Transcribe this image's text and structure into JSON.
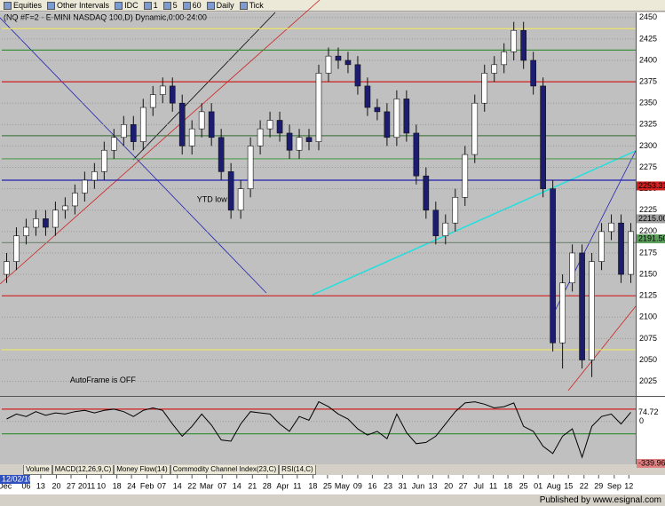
{
  "toolbar": {
    "items": [
      "Equities",
      "Other Intervals",
      "IDC",
      "1",
      "5",
      "60",
      "Daily",
      "Tick"
    ]
  },
  "chart_data": [
    {
      "type": "candlestick",
      "title": "(NQ #F=2 - E-MINI NASDAQ 100,D) Dynamic,0:00-24:00",
      "up_color": "#ffffff",
      "down_color": "#1c1c70",
      "open": [
        2150,
        2165,
        2195,
        2205,
        2215,
        2205,
        2225,
        2230,
        2245,
        2260,
        2270,
        2295,
        2310,
        2325,
        2305,
        2345,
        2360,
        2370,
        2350,
        2300,
        2320,
        2340,
        2310,
        2270,
        2225,
        2250,
        2300,
        2320,
        2330,
        2315,
        2295,
        2310,
        2305,
        2385,
        2405,
        2400,
        2395,
        2370,
        2345,
        2340,
        2310,
        2355,
        2315,
        2265,
        2225,
        2195,
        2210,
        2240,
        2290,
        2350,
        2385,
        2395,
        2410,
        2435,
        2400,
        2370,
        2250,
        2070,
        2140,
        2175,
        2050,
        2165,
        2200,
        2210,
        2150
      ],
      "high": [
        2175,
        2205,
        2215,
        2225,
        2225,
        2235,
        2240,
        2255,
        2270,
        2280,
        2305,
        2320,
        2335,
        2335,
        2355,
        2370,
        2380,
        2380,
        2360,
        2330,
        2350,
        2350,
        2320,
        2280,
        2260,
        2310,
        2330,
        2340,
        2340,
        2325,
        2320,
        2320,
        2395,
        2415,
        2415,
        2410,
        2405,
        2380,
        2355,
        2350,
        2365,
        2365,
        2325,
        2275,
        2235,
        2220,
        2250,
        2300,
        2360,
        2395,
        2405,
        2420,
        2445,
        2445,
        2410,
        2380,
        2260,
        2150,
        2185,
        2185,
        2175,
        2210,
        2220,
        2220,
        2210
      ],
      "low": [
        2140,
        2155,
        2185,
        2195,
        2195,
        2195,
        2215,
        2220,
        2235,
        2250,
        2260,
        2285,
        2300,
        2295,
        2295,
        2335,
        2350,
        2340,
        2290,
        2290,
        2310,
        2300,
        2260,
        2215,
        2215,
        2240,
        2290,
        2310,
        2305,
        2285,
        2285,
        2295,
        2295,
        2375,
        2390,
        2385,
        2360,
        2335,
        2330,
        2300,
        2300,
        2305,
        2255,
        2215,
        2185,
        2185,
        2200,
        2230,
        2280,
        2340,
        2375,
        2385,
        2400,
        2390,
        2360,
        2240,
        2060,
        2040,
        2130,
        2040,
        2030,
        2155,
        2190,
        2140,
        2140
      ],
      "close": [
        2165,
        2195,
        2205,
        2215,
        2205,
        2225,
        2230,
        2245,
        2260,
        2270,
        2295,
        2310,
        2325,
        2305,
        2345,
        2360,
        2370,
        2350,
        2300,
        2320,
        2340,
        2310,
        2270,
        2225,
        2250,
        2300,
        2320,
        2330,
        2315,
        2295,
        2310,
        2305,
        2385,
        2405,
        2400,
        2395,
        2370,
        2345,
        2340,
        2310,
        2355,
        2315,
        2265,
        2225,
        2195,
        2210,
        2240,
        2290,
        2350,
        2385,
        2395,
        2410,
        2435,
        2400,
        2370,
        2250,
        2070,
        2140,
        2175,
        2050,
        2165,
        2200,
        2210,
        2150,
        2200
      ],
      "xlim": [
        -0.5,
        64.5
      ],
      "ylim": [
        2008,
        2456
      ],
      "yticks": [
        2025,
        2050,
        2075,
        2100,
        2125,
        2150,
        2175,
        2200,
        2225,
        2250,
        2275,
        2300,
        2325,
        2350,
        2375,
        2400,
        2425,
        2450
      ],
      "xticks": [
        {
          "value": -0.2,
          "label": "Dec"
        },
        {
          "value": 2.0,
          "label": "06"
        },
        {
          "value": 3.5,
          "label": "13"
        },
        {
          "value": 5.1,
          "label": "20"
        },
        {
          "value": 6.6,
          "label": "27"
        },
        {
          "value": 8.2,
          "label": "2011"
        },
        {
          "value": 9.7,
          "label": "10"
        },
        {
          "value": 11.3,
          "label": "18"
        },
        {
          "value": 12.8,
          "label": "24"
        },
        {
          "value": 14.4,
          "label": "Feb"
        },
        {
          "value": 15.9,
          "label": "07"
        },
        {
          "value": 17.5,
          "label": "14"
        },
        {
          "value": 19.0,
          "label": "22"
        },
        {
          "value": 20.5,
          "label": "Mar"
        },
        {
          "value": 22.1,
          "label": "07"
        },
        {
          "value": 23.6,
          "label": "14"
        },
        {
          "value": 25.2,
          "label": "21"
        },
        {
          "value": 26.7,
          "label": "28"
        },
        {
          "value": 28.3,
          "label": "Apr"
        },
        {
          "value": 29.8,
          "label": "11"
        },
        {
          "value": 31.4,
          "label": "18"
        },
        {
          "value": 32.9,
          "label": "25"
        },
        {
          "value": 34.4,
          "label": "May"
        },
        {
          "value": 36.0,
          "label": "09"
        },
        {
          "value": 37.5,
          "label": "16"
        },
        {
          "value": 39.1,
          "label": "23"
        },
        {
          "value": 40.6,
          "label": "31"
        },
        {
          "value": 42.2,
          "label": "Jun"
        },
        {
          "value": 43.7,
          "label": "13"
        },
        {
          "value": 45.3,
          "label": "20"
        },
        {
          "value": 46.8,
          "label": "27"
        },
        {
          "value": 48.4,
          "label": "Jul"
        },
        {
          "value": 49.9,
          "label": "11"
        },
        {
          "value": 51.4,
          "label": "18"
        },
        {
          "value": 53.0,
          "label": "25"
        },
        {
          "value": 54.5,
          "label": "01"
        },
        {
          "value": 56.1,
          "label": "Aug"
        },
        {
          "value": 57.6,
          "label": "15"
        },
        {
          "value": 59.2,
          "label": "22"
        },
        {
          "value": 60.7,
          "label": "29"
        },
        {
          "value": 62.3,
          "label": "Sep"
        },
        {
          "value": 63.8,
          "label": "12"
        }
      ],
      "levels": [
        {
          "value": 2437,
          "color": "#f0e860"
        },
        {
          "value": 2412,
          "color": "#2e8b2e"
        },
        {
          "value": 2375,
          "color": "#d02020"
        },
        {
          "value": 2312,
          "color": "#4a7a4a"
        },
        {
          "value": 2285,
          "color": "#5aa05a"
        },
        {
          "value": 2260,
          "color": "#2020b0"
        },
        {
          "value": 2187,
          "color": "#7a8a7a"
        },
        {
          "value": 2125,
          "color": "#d02020"
        },
        {
          "value": 2062,
          "color": "#f0e860"
        }
      ],
      "tags": [
        {
          "value": 2253.31,
          "label": "2253.31",
          "color": "#d02020"
        },
        {
          "value": 2215,
          "label": "2215.00",
          "color": "#a0a0a0"
        },
        {
          "value": 2191.5,
          "label": "2191.50",
          "color": "#5aa05a"
        }
      ],
      "annotations": [
        {
          "text": "YTD low",
          "x": 19.5,
          "y": 2237
        },
        {
          "text": "AutoFrame is OFF",
          "x": 6.5,
          "y": 2026
        }
      ]
    },
    {
      "type": "line",
      "color": "#000000",
      "values": [
        20,
        60,
        40,
        80,
        50,
        70,
        60,
        80,
        90,
        70,
        90,
        100,
        80,
        40,
        90,
        110,
        90,
        -20,
        -120,
        -40,
        60,
        -30,
        -150,
        -160,
        -20,
        80,
        70,
        60,
        -20,
        -80,
        40,
        10,
        160,
        120,
        60,
        20,
        -60,
        -110,
        -80,
        -140,
        60,
        -90,
        -180,
        -170,
        -120,
        -20,
        80,
        150,
        160,
        140,
        110,
        120,
        150,
        -40,
        -80,
        -200,
        -260,
        -120,
        -60,
        -290,
        -40,
        40,
        60,
        -20,
        75
      ],
      "xlim": [
        -0.5,
        64.5
      ],
      "ylim": [
        -340,
        200
      ],
      "yticks": [
        0
      ],
      "levels": [
        {
          "value": 100,
          "color": "#d02020"
        },
        {
          "value": -100,
          "color": "#2e8b2e"
        }
      ],
      "tags": [
        {
          "value": 74.72,
          "color": "#ffffff"
        },
        {
          "value": -339.96,
          "color": "#e08080"
        }
      ]
    }
  ],
  "tabs": [
    "Volume",
    "MACD(12,26,9,C)",
    "Money Flow(14)",
    "Commodity Channel Index(23,C)",
    "RSI(14,C)"
  ],
  "start_date": "12/02/10",
  "footer": "Published by www.esignal.com"
}
